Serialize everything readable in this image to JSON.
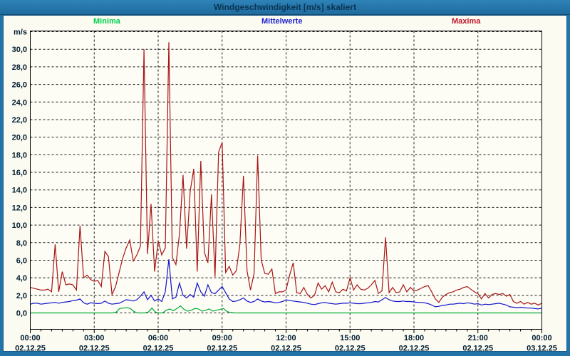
{
  "window": {
    "title": "Windgeschwindigkeit [m/s] skaliert"
  },
  "legend": [
    {
      "label": "Minima",
      "color": "#00d24a"
    },
    {
      "label": "Mittelwerte",
      "color": "#2222d2"
    },
    {
      "label": "Maxima",
      "color": "#c01428"
    }
  ],
  "chart_data": {
    "type": "line",
    "title": "Windgeschwindigkeit [m/s] skaliert",
    "xlabel": "",
    "ylabel": "m/s",
    "ylim": [
      0,
      32
    ],
    "grid": "dashed",
    "legend_position": "top",
    "x_step_minutes": 10,
    "x_range": [
      "00:00 02.12.25",
      "00:00 03.12.25"
    ],
    "y_tick_labels": [
      "0,0",
      "2,0",
      "4,0",
      "6,0",
      "8,0",
      "10,0",
      "12,0",
      "14,0",
      "16,0",
      "18,0",
      "20,0",
      "22,0",
      "24,0",
      "26,0",
      "28,0",
      "30,0"
    ],
    "x_ticks": [
      {
        "time": "00:00",
        "date": "02.12.25"
      },
      {
        "time": "03:00",
        "date": "02.12.25"
      },
      {
        "time": "06:00",
        "date": "02.12.25"
      },
      {
        "time": "09:00",
        "date": "02.12.25"
      },
      {
        "time": "12:00",
        "date": "02.12.25"
      },
      {
        "time": "15:00",
        "date": "02.12.25"
      },
      {
        "time": "18:00",
        "date": "02.12.25"
      },
      {
        "time": "21:00",
        "date": "02.12.25"
      },
      {
        "time": "00:00",
        "date": "03.12.25"
      }
    ],
    "series": [
      {
        "name": "Minima",
        "color": "#00aa33",
        "values": [
          0,
          0,
          0,
          0,
          0,
          0,
          0,
          0,
          0,
          0,
          0,
          0,
          0,
          0,
          0,
          0,
          0,
          0,
          0,
          0,
          0,
          0,
          0,
          0,
          0.1,
          0.5,
          0.55,
          0.6,
          0.5,
          0.15,
          0,
          0,
          0,
          0.1,
          0.55,
          0.1,
          0,
          0,
          0.3,
          0.45,
          0.25,
          0.5,
          0.8,
          0.4,
          0.2,
          0.3,
          0.5,
          0.45,
          0.2,
          0.3,
          0.45,
          0.2,
          0.3,
          0.4,
          0.5,
          0.15,
          0.05,
          0,
          0,
          0,
          0,
          0,
          0,
          0,
          0,
          0,
          0,
          0,
          0,
          0,
          0,
          0,
          0,
          0,
          0,
          0,
          0,
          0,
          0,
          0,
          0,
          0,
          0,
          0,
          0,
          0,
          0,
          0,
          0,
          0,
          0,
          0,
          0,
          0,
          0,
          0,
          0,
          0,
          0,
          0,
          0,
          0,
          0,
          0,
          0,
          0,
          0,
          0,
          0,
          0,
          0,
          0,
          0,
          0,
          0,
          0,
          0,
          0,
          0,
          0,
          0,
          0,
          0,
          0,
          0,
          0,
          0,
          0,
          0,
          0,
          0,
          0,
          0,
          0,
          0,
          0,
          0,
          0,
          0,
          0,
          0,
          0,
          0,
          0
        ]
      },
      {
        "name": "Mittelwerte",
        "color": "#1212cc",
        "values": [
          1,
          1.1,
          1.1,
          1,
          1.05,
          1.1,
          1.15,
          1.2,
          1.1,
          1.2,
          1.25,
          1.3,
          1.4,
          1.45,
          1.6,
          1.15,
          1,
          1.15,
          1.1,
          1.05,
          1.1,
          1.35,
          1.1,
          1,
          1.05,
          1.1,
          1.3,
          1.5,
          1.45,
          1.35,
          1.5,
          1.9,
          2.4,
          1.5,
          2,
          1.35,
          1.6,
          1.3,
          2.4,
          6.1,
          1.6,
          1.8,
          3.4,
          2,
          1.7,
          2.1,
          1.8,
          3.4,
          2.4,
          1.9,
          3.2,
          2.3,
          2.2,
          2.6,
          3,
          2.3,
          1.6,
          1.3,
          1.35,
          1.5,
          1.7,
          1.35,
          1.2,
          1.3,
          1.6,
          1.35,
          1.25,
          1.3,
          1.25,
          1.15,
          1.2,
          1.3,
          1.5,
          1.4,
          1.35,
          1.3,
          1.25,
          1.2,
          1.1,
          1,
          0.95,
          1.05,
          1.15,
          1.2,
          1.1,
          1.05,
          1,
          1.05,
          1.1,
          1.1,
          1.15,
          1.1,
          1.05,
          1.05,
          1.1,
          1.15,
          1.2,
          1.3,
          1.25,
          1.5,
          1.75,
          1.5,
          1.35,
          1.3,
          1.3,
          1.35,
          1.3,
          1.3,
          1.25,
          1.2,
          1.2,
          1.15,
          1.05,
          0.9,
          0.7,
          0.75,
          0.85,
          0.9,
          1,
          1,
          1.05,
          1.1,
          1.05,
          1.15,
          1.1,
          1,
          1.05,
          0.9,
          1,
          0.95,
          1,
          1.05,
          1.1,
          1,
          0.9,
          0.7,
          0.65,
          0.6,
          0.65,
          0.6,
          0.55,
          0.55,
          0.5,
          0.45,
          0.55
        ]
      },
      {
        "name": "Maxima",
        "color": "#a81414",
        "values": [
          2.9,
          2.8,
          2.7,
          2.6,
          2.6,
          2.7,
          2.4,
          7.8,
          2.4,
          4.7,
          3.2,
          3.3,
          3.2,
          2.6,
          9.9,
          4,
          4.3,
          3.8,
          3.6,
          3.7,
          3,
          7,
          6.4,
          2.1,
          3,
          4.6,
          6.2,
          7.4,
          8.3,
          5.9,
          6.6,
          7.6,
          30,
          6.7,
          12.4,
          4.7,
          8.2,
          6.6,
          7.4,
          30.8,
          6.3,
          5.5,
          9,
          15.7,
          7.3,
          13.8,
          16.4,
          4.7,
          17.3,
          6.9,
          5.7,
          13.5,
          4.1,
          18.3,
          19.4,
          4.6,
          5.3,
          4.3,
          4.8,
          7.8,
          15.6,
          4.8,
          2.6,
          4.5,
          17.9,
          6,
          4.5,
          4.4,
          5,
          2.2,
          2.4,
          2.4,
          2.6,
          4.3,
          5.7,
          2.3,
          2.2,
          2.9,
          2.1,
          1.7,
          2,
          3.4,
          2.7,
          3.1,
          2.4,
          3.5,
          2.4,
          2.3,
          2.7,
          2.5,
          4,
          2.6,
          3.2,
          2.7,
          2.6,
          2.8,
          3.2,
          3.7,
          2.2,
          2.5,
          8.6,
          2.3,
          2.9,
          2.3,
          2.4,
          3.2,
          2.4,
          2.9,
          2.5,
          2.6,
          2.8,
          3,
          3.1,
          2.4,
          1.6,
          1.2,
          1.8,
          2.1,
          2.3,
          2.4,
          2.6,
          2.7,
          2.9,
          3,
          2.7,
          2.4,
          2.2,
          1.6,
          2.2,
          1.7,
          2.1,
          2.2,
          2.1,
          2.2,
          1.9,
          2.1,
          1.3,
          1.1,
          1.3,
          1,
          1.2,
          1,
          1.1,
          0.9,
          1.1
        ]
      }
    ]
  }
}
